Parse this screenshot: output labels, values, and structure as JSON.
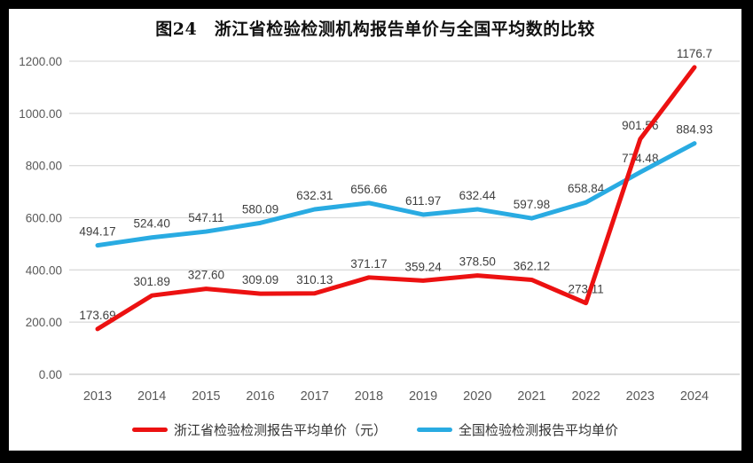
{
  "title": "图24　浙江省检验检测机构报告单价与全国平均数的比较",
  "colors": {
    "frame_border": "#000000",
    "background": "#FFFFFF",
    "grid": "#DBDBDB",
    "axis_line": "#C8C8C8",
    "axis_text": "#595959",
    "data_label_text": "#3F3F3F",
    "zhejiang_red": "#EC1111",
    "national_blue": "#29ABE2"
  },
  "chart_data": {
    "type": "line",
    "x": [
      "2013",
      "2014",
      "2015",
      "2016",
      "2017",
      "2018",
      "2019",
      "2020",
      "2021",
      "2022",
      "2023",
      "2024"
    ],
    "ylim": [
      0,
      1200
    ],
    "ytick_step": 200,
    "y_tick_labels": [
      "0.00",
      "200.00",
      "400.00",
      "600.00",
      "800.00",
      "1000.00",
      "1200.00"
    ],
    "grid": true,
    "legend_position": "bottom",
    "series": [
      {
        "name": "浙江省检验检测报告平均单价（元）",
        "color": "#EC1111",
        "values": [
          173.69,
          301.89,
          327.6,
          309.09,
          310.13,
          371.17,
          359.24,
          378.5,
          362.12,
          273.11,
          901.56,
          1176.7
        ],
        "labels": [
          "173.69",
          "301.89",
          "327.60",
          "309.09",
          "310.13",
          "371.17",
          "359.24",
          "378.50",
          "362.12",
          "273.11",
          "901.56",
          "1176.7"
        ]
      },
      {
        "name": "全国检验检测报告平均单价",
        "color": "#29ABE2",
        "values": [
          494.17,
          524.4,
          547.11,
          580.09,
          632.31,
          656.66,
          611.97,
          632.44,
          597.98,
          658.84,
          774.48,
          884.93
        ],
        "labels": [
          "494.17",
          "524.40",
          "547.11",
          "580.09",
          "632.31",
          "656.66",
          "611.97",
          "632.44",
          "597.98",
          "658.84",
          "774.48",
          "884.93"
        ]
      }
    ]
  }
}
